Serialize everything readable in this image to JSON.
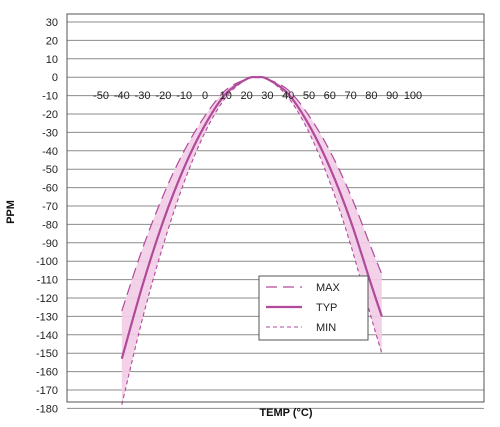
{
  "chart_data": {
    "type": "line",
    "title": "",
    "xlabel": "TEMP (°C)",
    "ylabel": "PPM",
    "xlim": [
      -50,
      100
    ],
    "ylim": [
      -180,
      30
    ],
    "x_ticks": [
      -50,
      -40,
      -30,
      -20,
      -10,
      0,
      10,
      20,
      30,
      40,
      50,
      60,
      70,
      80,
      90,
      100
    ],
    "y_ticks": [
      30,
      20,
      10,
      0,
      -10,
      -20,
      -30,
      -40,
      -50,
      -60,
      -70,
      -80,
      -90,
      -100,
      -110,
      -120,
      -130,
      -140,
      -150,
      -160,
      -170,
      -180
    ],
    "grid": {
      "horizontal": true,
      "vertical": false
    },
    "legend_position": "lower-right",
    "shaded_band": {
      "between": [
        "MAX",
        "MIN"
      ],
      "color": "#f2cde7"
    },
    "series": [
      {
        "name": "MAX",
        "style": "long-dash",
        "color": "#b04a9a",
        "x": [
          -40,
          -30,
          -20,
          -10,
          0,
          10,
          20,
          25,
          30,
          40,
          50,
          60,
          70,
          80,
          85
        ],
        "y": [
          -127,
          -93,
          -64,
          -40,
          -21,
          -7,
          -1,
          0,
          -1,
          -7,
          -21,
          -40,
          -64,
          -93,
          -107
        ]
      },
      {
        "name": "TYP",
        "style": "solid",
        "color": "#b04a9a",
        "x": [
          -40,
          -30,
          -20,
          -10,
          0,
          10,
          20,
          25,
          30,
          40,
          50,
          60,
          70,
          80,
          85
        ],
        "y": [
          -153,
          -113,
          -78,
          -49,
          -26,
          -9,
          -1,
          0,
          -1,
          -9,
          -26,
          -49,
          -78,
          -113,
          -130
        ]
      },
      {
        "name": "MIN",
        "style": "short-dash",
        "color": "#b04a9a",
        "x": [
          -40,
          -30,
          -20,
          -10,
          0,
          10,
          20,
          25,
          30,
          40,
          50,
          60,
          70,
          80,
          85
        ],
        "y": [
          -178,
          -131,
          -91,
          -57,
          -30,
          -11,
          -1,
          0,
          -1,
          -11,
          -30,
          -57,
          -91,
          -131,
          -150
        ]
      }
    ]
  }
}
